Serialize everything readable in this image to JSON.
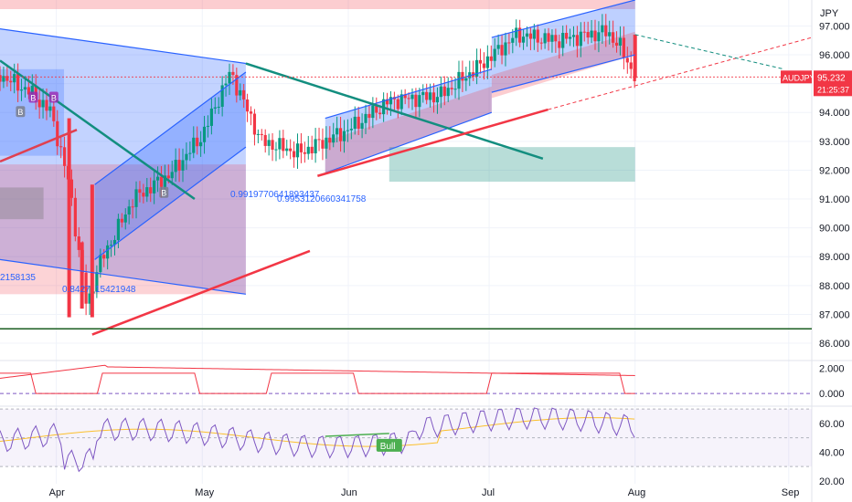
{
  "chart_data": {
    "type": "candlestick",
    "symbol": "AUDJPY",
    "currency": "JPY",
    "last_price": "95.232",
    "countdown": "21:25:37",
    "price_ticks": [
      "97.000",
      "96.000",
      "95.000",
      "94.000",
      "93.000",
      "92.000",
      "91.000",
      "90.000",
      "89.000",
      "88.000",
      "87.000",
      "86.000"
    ],
    "price_range": [
      85.4,
      97.9
    ],
    "x_ticks": [
      "Apr",
      "May",
      "Jun",
      "Jul",
      "Aug",
      "Sep"
    ],
    "x_ticks_day": [
      10,
      67,
      124,
      179,
      236,
      296
    ],
    "day_range": [
      -12,
      305
    ],
    "indicator1_ticks": [
      "2.000",
      "0.000"
    ],
    "indicator2_ticks": [
      "60.00",
      "40.00",
      "20.00"
    ],
    "rsi_range": [
      18,
      72
    ],
    "annotations": [
      "0.8427",
      "15421948",
      "2158135",
      "0.9919770641893437",
      "0.9953120660341758"
    ],
    "bull_label": "Bull",
    "signal_markers": [
      "B",
      "B",
      "B",
      "B"
    ],
    "candles_close_samples": [
      {
        "day": -12,
        "close": 95.3
      },
      {
        "day": 0,
        "close": 94.7
      },
      {
        "day": 8,
        "close": 94.0
      },
      {
        "day": 15,
        "close": 91.5
      },
      {
        "day": 22,
        "close": 87.2
      },
      {
        "day": 26,
        "close": 88.6
      },
      {
        "day": 40,
        "close": 91.0
      },
      {
        "day": 55,
        "close": 91.9
      },
      {
        "day": 67,
        "close": 93.2
      },
      {
        "day": 78,
        "close": 95.4
      },
      {
        "day": 90,
        "close": 93.0
      },
      {
        "day": 105,
        "close": 92.6
      },
      {
        "day": 124,
        "close": 93.4
      },
      {
        "day": 140,
        "close": 94.4
      },
      {
        "day": 160,
        "close": 94.6
      },
      {
        "day": 175,
        "close": 95.6
      },
      {
        "day": 190,
        "close": 96.7
      },
      {
        "day": 205,
        "close": 96.5
      },
      {
        "day": 225,
        "close": 96.8
      },
      {
        "day": 230,
        "close": 96.3
      },
      {
        "day": 236,
        "close": 95.23
      }
    ],
    "colors": {
      "up": "#089981",
      "down": "#f23645",
      "blue_channel": "#2962ff",
      "green_line": "#138e7f",
      "red_line": "#f23645",
      "support": "#1b5e20",
      "rsi": "#7e57c2",
      "ma": "#fbc02d"
    }
  }
}
